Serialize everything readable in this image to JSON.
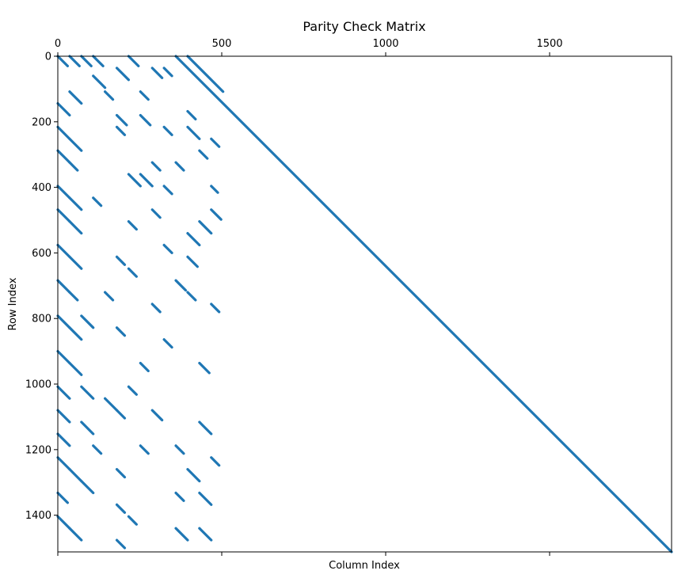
{
  "chart_data": {
    "type": "scatter",
    "title": "Parity Check Matrix",
    "xlabel": "Column Index",
    "ylabel": "Row Index",
    "xlim": [
      0,
      1872
    ],
    "ylim": [
      1512,
      0
    ],
    "x_axis_position": "top",
    "x_ticks": [
      0,
      500,
      1000,
      1500
    ],
    "x_tick_labels": [
      "0",
      "500",
      "1000",
      "1500"
    ],
    "y_ticks": [
      0,
      200,
      400,
      600,
      800,
      1000,
      1200,
      1400
    ],
    "y_tick_labels": [
      "0",
      "200",
      "400",
      "600",
      "800",
      "1000",
      "1200",
      "1400"
    ],
    "grid": false,
    "marker_color": "#1f77b4",
    "structure": {
      "rows": 1512,
      "columns": 1872,
      "information_columns": 504,
      "identity_block": {
        "column_start": 360,
        "column_end": 1872,
        "row_start": 0,
        "row_end": 1512
      },
      "second_diagonal": {
        "column_start": 396,
        "column_end": 504,
        "row_start": 0,
        "row_end": 108
      },
      "circulant_block_size": 36,
      "sparse_region_columns": [
        0,
        504
      ],
      "description_note": ""
    },
    "series": [
      {
        "values": [
          {
            "c0": 0,
            "r0": 0,
            "len": 30
          },
          {
            "c0": 36,
            "r0": 0,
            "len": 30
          },
          {
            "c0": 72,
            "r0": 0,
            "len": 30
          },
          {
            "c0": 108,
            "r0": 0,
            "len": 30
          },
          {
            "c0": 216,
            "r0": 0,
            "len": 30
          },
          {
            "c0": 288,
            "r0": 36,
            "len": 30
          },
          {
            "c0": 324,
            "r0": 36,
            "len": 24
          },
          {
            "c0": 108,
            "r0": 60,
            "len": 36
          },
          {
            "c0": 180,
            "r0": 36,
            "len": 36
          },
          {
            "c0": 144,
            "r0": 108,
            "len": 24
          },
          {
            "c0": 252,
            "r0": 108,
            "len": 24
          },
          {
            "c0": 0,
            "r0": 144,
            "len": 36
          },
          {
            "c0": 36,
            "r0": 108,
            "len": 36
          },
          {
            "c0": 180,
            "r0": 180,
            "len": 30
          },
          {
            "c0": 252,
            "r0": 180,
            "len": 30
          },
          {
            "c0": 396,
            "r0": 168,
            "len": 24
          },
          {
            "c0": 0,
            "r0": 216,
            "len": 36
          },
          {
            "c0": 36,
            "r0": 252,
            "len": 36
          },
          {
            "c0": 180,
            "r0": 216,
            "len": 24
          },
          {
            "c0": 324,
            "r0": 216,
            "len": 24
          },
          {
            "c0": 396,
            "r0": 216,
            "len": 36
          },
          {
            "c0": 468,
            "r0": 252,
            "len": 24
          },
          {
            "c0": 0,
            "r0": 288,
            "len": 36
          },
          {
            "c0": 36,
            "r0": 324,
            "len": 24
          },
          {
            "c0": 288,
            "r0": 324,
            "len": 24
          },
          {
            "c0": 360,
            "r0": 324,
            "len": 24
          },
          {
            "c0": 432,
            "r0": 288,
            "len": 24
          },
          {
            "c0": 216,
            "r0": 360,
            "len": 36
          },
          {
            "c0": 252,
            "r0": 360,
            "len": 36
          },
          {
            "c0": 324,
            "r0": 396,
            "len": 24
          },
          {
            "c0": 468,
            "r0": 396,
            "len": 20
          },
          {
            "c0": 0,
            "r0": 396,
            "len": 36
          },
          {
            "c0": 36,
            "r0": 432,
            "len": 36
          },
          {
            "c0": 108,
            "r0": 432,
            "len": 24
          },
          {
            "c0": 0,
            "r0": 468,
            "len": 36
          },
          {
            "c0": 36,
            "r0": 504,
            "len": 36
          },
          {
            "c0": 216,
            "r0": 504,
            "len": 24
          },
          {
            "c0": 288,
            "r0": 468,
            "len": 24
          },
          {
            "c0": 468,
            "r0": 468,
            "len": 30
          },
          {
            "c0": 396,
            "r0": 540,
            "len": 36
          },
          {
            "c0": 432,
            "r0": 504,
            "len": 36
          },
          {
            "c0": 324,
            "r0": 576,
            "len": 24
          },
          {
            "c0": 0,
            "r0": 576,
            "len": 36
          },
          {
            "c0": 36,
            "r0": 612,
            "len": 36
          },
          {
            "c0": 180,
            "r0": 612,
            "len": 24
          },
          {
            "c0": 216,
            "r0": 648,
            "len": 24
          },
          {
            "c0": 396,
            "r0": 612,
            "len": 30
          },
          {
            "c0": 0,
            "r0": 684,
            "len": 36
          },
          {
            "c0": 36,
            "r0": 720,
            "len": 24
          },
          {
            "c0": 144,
            "r0": 720,
            "len": 24
          },
          {
            "c0": 360,
            "r0": 684,
            "len": 30
          },
          {
            "c0": 396,
            "r0": 720,
            "len": 24
          },
          {
            "c0": 468,
            "r0": 756,
            "len": 24
          },
          {
            "c0": 288,
            "r0": 756,
            "len": 24
          },
          {
            "c0": 0,
            "r0": 792,
            "len": 36
          },
          {
            "c0": 36,
            "r0": 828,
            "len": 36
          },
          {
            "c0": 72,
            "r0": 792,
            "len": 36
          },
          {
            "c0": 180,
            "r0": 828,
            "len": 24
          },
          {
            "c0": 324,
            "r0": 864,
            "len": 24
          },
          {
            "c0": 0,
            "r0": 900,
            "len": 36
          },
          {
            "c0": 36,
            "r0": 936,
            "len": 36
          },
          {
            "c0": 252,
            "r0": 936,
            "len": 24
          },
          {
            "c0": 432,
            "r0": 936,
            "len": 30
          },
          {
            "c0": 0,
            "r0": 1008,
            "len": 36
          },
          {
            "c0": 72,
            "r0": 1008,
            "len": 36
          },
          {
            "c0": 144,
            "r0": 1044,
            "len": 36
          },
          {
            "c0": 216,
            "r0": 1008,
            "len": 24
          },
          {
            "c0": 0,
            "r0": 1080,
            "len": 36
          },
          {
            "c0": 72,
            "r0": 1116,
            "len": 36
          },
          {
            "c0": 180,
            "r0": 1080,
            "len": 24
          },
          {
            "c0": 288,
            "r0": 1080,
            "len": 30
          },
          {
            "c0": 432,
            "r0": 1116,
            "len": 36
          },
          {
            "c0": 0,
            "r0": 1152,
            "len": 36
          },
          {
            "c0": 108,
            "r0": 1188,
            "len": 24
          },
          {
            "c0": 252,
            "r0": 1188,
            "len": 24
          },
          {
            "c0": 360,
            "r0": 1188,
            "len": 24
          },
          {
            "c0": 468,
            "r0": 1224,
            "len": 24
          },
          {
            "c0": 0,
            "r0": 1224,
            "len": 36
          },
          {
            "c0": 36,
            "r0": 1260,
            "len": 36
          },
          {
            "c0": 180,
            "r0": 1260,
            "len": 24
          },
          {
            "c0": 396,
            "r0": 1260,
            "len": 36
          },
          {
            "c0": 0,
            "r0": 1332,
            "len": 30
          },
          {
            "c0": 72,
            "r0": 1296,
            "len": 36
          },
          {
            "c0": 180,
            "r0": 1368,
            "len": 24
          },
          {
            "c0": 360,
            "r0": 1332,
            "len": 24
          },
          {
            "c0": 432,
            "r0": 1332,
            "len": 36
          },
          {
            "c0": 0,
            "r0": 1404,
            "len": 36
          },
          {
            "c0": 36,
            "r0": 1440,
            "len": 36
          },
          {
            "c0": 216,
            "r0": 1404,
            "len": 24
          },
          {
            "c0": 360,
            "r0": 1440,
            "len": 36
          },
          {
            "c0": 432,
            "r0": 1440,
            "len": 36
          },
          {
            "c0": 180,
            "r0": 1476,
            "len": 24
          }
        ]
      }
    ]
  }
}
